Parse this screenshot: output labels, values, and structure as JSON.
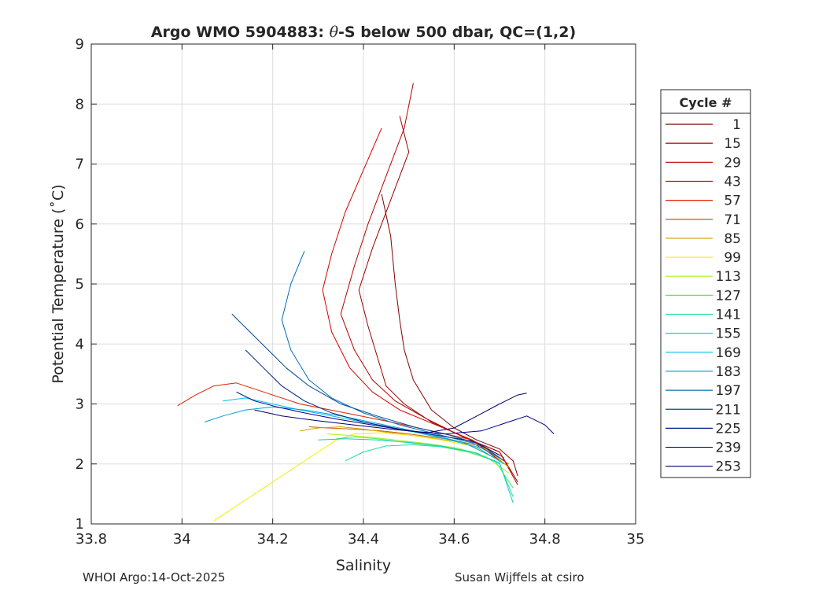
{
  "chart_data": {
    "type": "line",
    "title": "Argo WMO 5904883: θ-S below 500 dbar,  QC=(1,2)",
    "title_parts": {
      "prefix": "Argo WMO 5904883: ",
      "theta": "θ",
      "suffix": "-S below 500 dbar,  QC=(1,2)"
    },
    "xlabel": "Salinity",
    "ylabel": "Potential Temperature (˚C)",
    "xlim": [
      33.8,
      35
    ],
    "ylim": [
      1,
      9
    ],
    "xticks": [
      33.8,
      34,
      34.2,
      34.4,
      34.6,
      34.8,
      35
    ],
    "xtick_labels": [
      "33.8",
      "34",
      "34.2",
      "34.4",
      "34.6",
      "34.8",
      "35"
    ],
    "yticks": [
      1,
      2,
      3,
      4,
      5,
      6,
      7,
      8,
      9
    ],
    "ytick_labels": [
      "1",
      "2",
      "3",
      "4",
      "5",
      "6",
      "7",
      "8",
      "9"
    ],
    "grid": true,
    "legend": {
      "title": "Cycle #",
      "placement": "right",
      "entries": [
        {
          "label": "1",
          "color": "#800000"
        },
        {
          "label": "15",
          "color": "#9c0000"
        },
        {
          "label": "29",
          "color": "#b80000"
        },
        {
          "label": "43",
          "color": "#d40000"
        },
        {
          "label": "57",
          "color": "#e02000"
        },
        {
          "label": "71",
          "color": "#c06000"
        },
        {
          "label": "85",
          "color": "#d8a000"
        },
        {
          "label": "99",
          "color": "#f0f000"
        },
        {
          "label": "113",
          "color": "#a8f020"
        },
        {
          "label": "127",
          "color": "#50f050"
        },
        {
          "label": "141",
          "color": "#20e0a0"
        },
        {
          "label": "155",
          "color": "#10d0c8"
        },
        {
          "label": "169",
          "color": "#00c0f0"
        },
        {
          "label": "183",
          "color": "#00a0d0"
        },
        {
          "label": "197",
          "color": "#0070b8"
        },
        {
          "label": "211",
          "color": "#004898"
        },
        {
          "label": "225",
          "color": "#002080"
        },
        {
          "label": "239",
          "color": "#000090"
        },
        {
          "label": "253",
          "color": "#000070"
        }
      ]
    },
    "series": [
      {
        "name": "1",
        "color": "#800000",
        "x": [
          34.44,
          34.46,
          34.47,
          34.48,
          34.49,
          34.51,
          34.55,
          34.6,
          34.65,
          34.7,
          34.73,
          34.74
        ],
        "y": [
          6.5,
          5.8,
          5.0,
          4.4,
          3.9,
          3.4,
          2.9,
          2.6,
          2.4,
          2.25,
          2.05,
          1.8
        ]
      },
      {
        "name": "15",
        "color": "#9c0000",
        "x": [
          34.48,
          34.5,
          34.46,
          34.42,
          34.39,
          34.41,
          34.43,
          34.45,
          34.49,
          34.55,
          34.62,
          34.7,
          34.74
        ],
        "y": [
          7.8,
          7.2,
          6.4,
          5.6,
          4.9,
          4.3,
          3.8,
          3.3,
          3.0,
          2.7,
          2.45,
          2.2,
          1.7
        ]
      },
      {
        "name": "29",
        "color": "#b80000",
        "x": [
          34.51,
          34.49,
          34.45,
          34.41,
          34.38,
          34.35,
          34.38,
          34.42,
          34.47,
          34.54,
          34.62,
          34.7,
          34.74
        ],
        "y": [
          8.35,
          7.6,
          6.8,
          6.0,
          5.3,
          4.5,
          3.9,
          3.4,
          3.05,
          2.75,
          2.45,
          2.2,
          1.65
        ]
      },
      {
        "name": "43",
        "color": "#d40000",
        "x": [
          34.44,
          34.4,
          34.36,
          34.33,
          34.31,
          34.33,
          34.37,
          34.42,
          34.48,
          34.56,
          34.64,
          34.71
        ],
        "y": [
          7.6,
          6.9,
          6.2,
          5.5,
          4.9,
          4.2,
          3.6,
          3.2,
          2.9,
          2.65,
          2.4,
          2.0
        ]
      },
      {
        "name": "57",
        "color": "#e02000",
        "x": [
          33.99,
          34.03,
          34.07,
          34.12,
          34.18,
          34.26,
          34.36,
          34.46,
          34.55,
          34.64,
          34.71
        ],
        "y": [
          2.97,
          3.15,
          3.3,
          3.35,
          3.2,
          3.0,
          2.85,
          2.7,
          2.55,
          2.4,
          2.1
        ]
      },
      {
        "name": "71",
        "color": "#c06000",
        "x": [
          34.28,
          34.32,
          34.38,
          34.44,
          34.5,
          34.58,
          34.66,
          34.72
        ],
        "y": [
          2.62,
          2.6,
          2.58,
          2.55,
          2.5,
          2.42,
          2.3,
          2.0
        ]
      },
      {
        "name": "85",
        "color": "#d8a000",
        "x": [
          34.26,
          34.3,
          34.35,
          34.4,
          34.46,
          34.53,
          34.6,
          34.67,
          34.72
        ],
        "y": [
          2.55,
          2.6,
          2.62,
          2.58,
          2.52,
          2.45,
          2.38,
          2.25,
          1.95
        ]
      },
      {
        "name": "99",
        "color": "#f0f000",
        "x": [
          34.07,
          34.1,
          34.14,
          34.18,
          34.22,
          34.26,
          34.3,
          34.34,
          34.38,
          34.44,
          34.5,
          34.57,
          34.64,
          34.7
        ],
        "y": [
          1.05,
          1.2,
          1.4,
          1.6,
          1.8,
          2.0,
          2.2,
          2.4,
          2.5,
          2.52,
          2.48,
          2.4,
          2.3,
          2.05
        ]
      },
      {
        "name": "113",
        "color": "#a8f020",
        "x": [
          34.32,
          34.36,
          34.41,
          34.47,
          34.54,
          34.61,
          34.67,
          34.72
        ],
        "y": [
          2.5,
          2.48,
          2.45,
          2.4,
          2.34,
          2.26,
          2.12,
          1.85
        ]
      },
      {
        "name": "127",
        "color": "#50f050",
        "x": [
          34.34,
          34.38,
          34.43,
          34.49,
          34.56,
          34.63,
          34.69,
          34.73
        ],
        "y": [
          2.42,
          2.45,
          2.42,
          2.36,
          2.3,
          2.2,
          2.05,
          1.6
        ]
      },
      {
        "name": "141",
        "color": "#20e0a0",
        "x": [
          34.36,
          34.4,
          34.45,
          34.51,
          34.58,
          34.65,
          34.7,
          34.73
        ],
        "y": [
          2.05,
          2.2,
          2.3,
          2.32,
          2.28,
          2.18,
          2.0,
          1.45
        ]
      },
      {
        "name": "155",
        "color": "#10d0c8",
        "x": [
          34.3,
          34.36,
          34.43,
          34.5,
          34.57,
          34.64,
          34.7,
          34.73
        ],
        "y": [
          2.4,
          2.42,
          2.4,
          2.36,
          2.3,
          2.2,
          2.02,
          1.35
        ]
      },
      {
        "name": "169",
        "color": "#00c0f0",
        "x": [
          34.09,
          34.14,
          34.2,
          34.26,
          34.33,
          34.41,
          34.5,
          34.58,
          34.65,
          34.71
        ],
        "y": [
          3.05,
          3.1,
          3.0,
          2.9,
          2.8,
          2.68,
          2.55,
          2.42,
          2.28,
          2.0
        ]
      },
      {
        "name": "183",
        "color": "#00a0d0",
        "x": [
          34.05,
          34.09,
          34.14,
          34.2,
          34.27,
          34.35,
          34.44,
          34.53,
          34.62,
          34.69
        ],
        "y": [
          2.7,
          2.8,
          2.9,
          2.95,
          2.9,
          2.8,
          2.66,
          2.52,
          2.36,
          2.1
        ]
      },
      {
        "name": "197",
        "color": "#0070b8",
        "x": [
          34.27,
          34.24,
          34.22,
          34.24,
          34.28,
          34.33,
          34.4,
          34.48,
          34.56,
          34.64,
          34.7
        ],
        "y": [
          5.55,
          5.0,
          4.4,
          3.9,
          3.4,
          3.1,
          2.85,
          2.65,
          2.5,
          2.35,
          2.1
        ]
      },
      {
        "name": "211",
        "color": "#004898",
        "x": [
          34.11,
          34.15,
          34.19,
          34.23,
          34.28,
          34.35,
          34.43,
          34.51,
          34.59,
          34.66,
          34.71
        ],
        "y": [
          4.5,
          4.2,
          3.9,
          3.6,
          3.3,
          3.0,
          2.8,
          2.62,
          2.48,
          2.32,
          2.05
        ]
      },
      {
        "name": "225",
        "color": "#002080",
        "x": [
          34.14,
          34.18,
          34.22,
          34.27,
          34.33,
          34.4,
          34.48,
          34.56,
          34.64,
          34.7
        ],
        "y": [
          3.9,
          3.6,
          3.3,
          3.05,
          2.85,
          2.7,
          2.58,
          2.48,
          2.38,
          2.15
        ]
      },
      {
        "name": "239",
        "color": "#000090",
        "x": [
          34.12,
          34.16,
          34.21,
          34.27,
          34.34,
          34.42,
          34.5,
          34.58,
          34.66,
          34.72,
          34.76,
          34.8,
          34.82
        ],
        "y": [
          3.2,
          3.05,
          2.95,
          2.85,
          2.75,
          2.65,
          2.55,
          2.5,
          2.55,
          2.7,
          2.8,
          2.65,
          2.5
        ]
      },
      {
        "name": "253",
        "color": "#000070",
        "x": [
          34.16,
          34.22,
          34.3,
          34.38,
          34.46,
          34.54,
          34.6,
          34.65,
          34.7,
          34.74,
          34.76
        ],
        "y": [
          2.9,
          2.8,
          2.72,
          2.65,
          2.58,
          2.52,
          2.6,
          2.8,
          3.0,
          3.15,
          3.18
        ]
      }
    ]
  },
  "footer": {
    "left": "WHOI Argo:14-Oct-2025",
    "right": "Susan Wijffels at csiro"
  }
}
